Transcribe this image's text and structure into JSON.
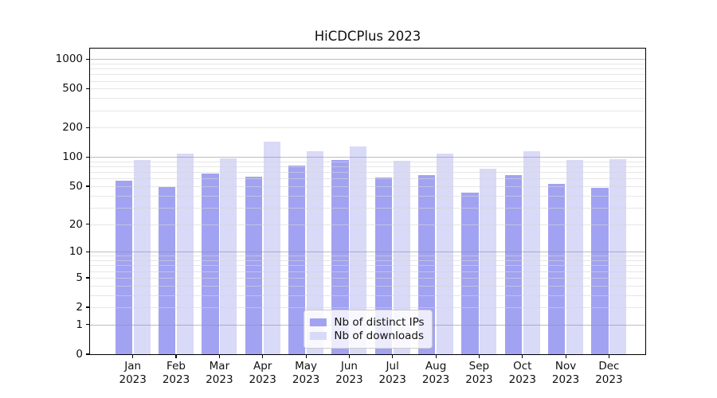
{
  "title": "HiCDCPlus 2023",
  "chart_data": {
    "type": "bar",
    "title": "HiCDCPlus 2023",
    "categories": [
      "Jan",
      "Feb",
      "Mar",
      "Apr",
      "May",
      "Jun",
      "Jul",
      "Aug",
      "Sep",
      "Oct",
      "Nov",
      "Dec"
    ],
    "x_year_label": "2023",
    "series": [
      {
        "name": "Nb of distinct IPs",
        "color": "#a2a2f2",
        "values": [
          57,
          49,
          68,
          63,
          82,
          93,
          62,
          65,
          43,
          65,
          53,
          48
        ]
      },
      {
        "name": "Nb of downloads",
        "color": "#d9d9f8",
        "values": [
          93,
          108,
          97,
          144,
          115,
          128,
          91,
          108,
          76,
          114,
          93,
          95
        ]
      }
    ],
    "yscale": "log1p",
    "ylim": [
      0,
      1281
    ],
    "yticks": [
      0,
      1,
      2,
      5,
      10,
      20,
      50,
      100,
      200,
      500,
      1000
    ],
    "grid_major": [
      1,
      10,
      100,
      1000
    ],
    "grid_minor": [
      2,
      3,
      4,
      5,
      6,
      7,
      8,
      9,
      20,
      30,
      40,
      50,
      60,
      70,
      80,
      90,
      200,
      300,
      400,
      500,
      600,
      700,
      800,
      900
    ],
    "grid": true,
    "legend_position": "lower center",
    "xlabel": "",
    "ylabel": ""
  },
  "colors": {
    "background": "#ffffff",
    "spine": "#000000",
    "grid_minor": "#e6e6e6",
    "grid_major": "#b6b6b6",
    "legend_border": "#cccccc",
    "text": "#111111"
  }
}
